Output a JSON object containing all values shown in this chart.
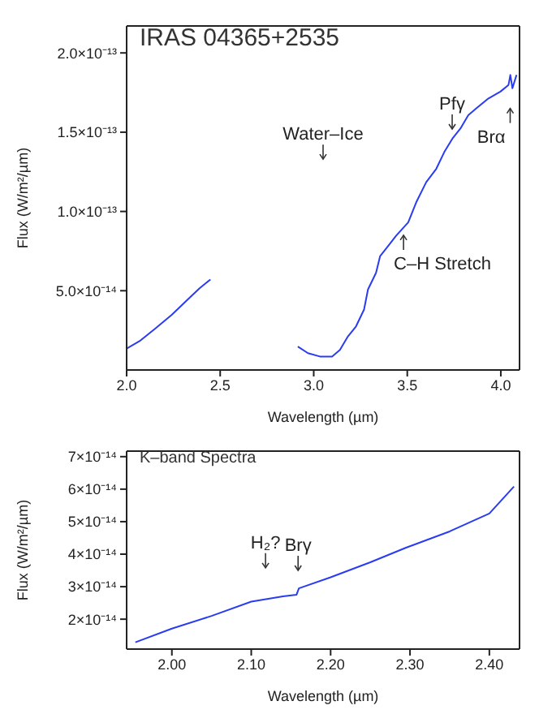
{
  "chart_data": [
    {
      "type": "line",
      "title": "IRAS 04365+2535",
      "xlabel": "Wavelength (µm)",
      "ylabel": "Flux (W/m²/µm)",
      "xlim": [
        2.0,
        4.1
      ],
      "xticks": [
        {
          "value": 2.0,
          "label": "2.0"
        },
        {
          "value": 2.5,
          "label": "2.5"
        },
        {
          "value": 3.0,
          "label": "3.0"
        },
        {
          "value": 3.5,
          "label": "3.5"
        },
        {
          "value": 4.0,
          "label": "4.0"
        }
      ],
      "ylim": [
        0,
        2.17e-13
      ],
      "yticks": [
        {
          "value": 5e-14,
          "label": "5.0×10⁻¹⁴"
        },
        {
          "value": 1e-13,
          "label": "1.0×10⁻¹³"
        },
        {
          "value": 1.5e-13,
          "label": "1.5×10⁻¹³"
        },
        {
          "value": 2e-13,
          "label": "2.0×10⁻¹³"
        }
      ],
      "series": [
        {
          "color": "#2a3cf0",
          "x": [
            2.0,
            2.069,
            2.154,
            2.24,
            2.326,
            2.39,
            2.448
          ],
          "values": [
            1.35e-14,
            1.82e-14,
            2.62e-14,
            3.47e-14,
            4.44e-14,
            5.16e-14,
            5.71e-14
          ]
        },
        {
          "color": "#2a3cf0",
          "x": [
            2.915,
            2.969,
            3.033,
            3.098,
            3.14,
            3.183,
            3.226,
            3.269,
            3.29,
            3.333,
            3.355,
            3.398,
            3.44,
            3.505,
            3.548,
            3.601,
            3.655,
            3.698,
            3.741,
            3.784,
            3.826,
            3.869,
            3.934,
            3.998,
            4.041,
            4.051,
            4.062,
            4.084
          ],
          "values": [
            1.48e-14,
            1.06e-14,
            8.5e-15,
            8.5e-15,
            1.27e-14,
            2.12e-14,
            2.75e-14,
            3.81e-14,
            5.08e-14,
            6.13e-14,
            7.19e-14,
            7.83e-14,
            8.46e-14,
            9.31e-14,
            1.058e-13,
            1.184e-13,
            1.269e-13,
            1.375e-13,
            1.459e-13,
            1.523e-13,
            1.607e-13,
            1.65e-13,
            1.713e-13,
            1.756e-13,
            1.798e-13,
            1.861e-13,
            1.777e-13,
            1.861e-13
          ]
        }
      ],
      "annotations": [
        {
          "text": "Water–Ice",
          "x": 3.05,
          "y": 1.33e-13
        },
        {
          "text": "C–H Stretch",
          "x": 3.48,
          "y": 8.5e-14
        },
        {
          "text": "Pfγ",
          "x": 3.74,
          "y": 1.52e-13
        },
        {
          "text": "Brα",
          "x": 4.05,
          "y": 1.65e-13
        }
      ]
    },
    {
      "type": "line",
      "title": "K–band Spectra",
      "xlabel": "Wavelength (µm)",
      "ylabel": "Flux (W/m²/µm)",
      "xlim": [
        1.943,
        2.438
      ],
      "xticks": [
        {
          "value": 2.0,
          "label": "2.00"
        },
        {
          "value": 2.1,
          "label": "2.10"
        },
        {
          "value": 2.2,
          "label": "2.20"
        },
        {
          "value": 2.3,
          "label": "2.30"
        },
        {
          "value": 2.4,
          "label": "2.40"
        }
      ],
      "ylim": [
        1.08e-14,
        7.17e-14
      ],
      "yticks": [
        {
          "value": 2e-14,
          "label": "2×10⁻¹⁴"
        },
        {
          "value": 3e-14,
          "label": "3×10⁻¹⁴"
        },
        {
          "value": 4e-14,
          "label": "4×10⁻¹⁴"
        },
        {
          "value": 5e-14,
          "label": "5×10⁻¹⁴"
        },
        {
          "value": 6e-14,
          "label": "6×10⁻¹⁴"
        },
        {
          "value": 7e-14,
          "label": "7×10⁻¹⁴"
        }
      ],
      "series": [
        {
          "color": "#2a3cf0",
          "x": [
            1.954,
            2.0,
            2.05,
            2.1,
            2.14,
            2.157,
            2.16,
            2.2,
            2.25,
            2.295,
            2.35,
            2.4,
            2.431
          ],
          "values": [
            1.29e-14,
            1.71e-14,
            2.1e-14,
            2.54e-14,
            2.7e-14,
            2.75e-14,
            2.95e-14,
            3.29e-14,
            3.75e-14,
            4.2e-14,
            4.7e-14,
            5.25e-14,
            6.08e-14
          ]
        }
      ],
      "annotations": [
        {
          "text": "H₂?",
          "x": 2.118,
          "y": 3.58e-14
        },
        {
          "text": "Brγ",
          "x": 2.159,
          "y": 3.5e-14
        }
      ]
    }
  ]
}
